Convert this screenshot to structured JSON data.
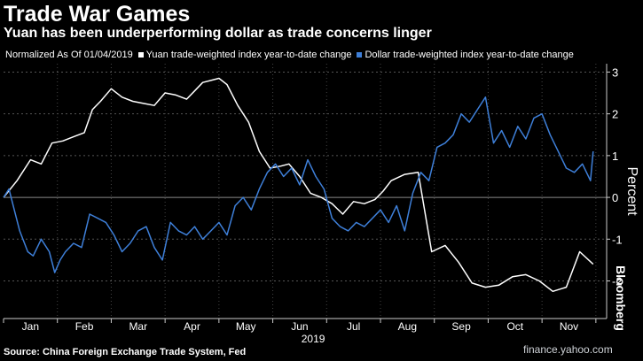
{
  "header": {
    "title": "Trade War Games",
    "subtitle": "Yuan has been underperforming dollar as trade concerns linger"
  },
  "legend": {
    "note": "Normalized As Of 01/04/2019",
    "items": [
      {
        "label": "Yuan trade-weighted index year-to-date change",
        "color": "#ffffff"
      },
      {
        "label": "Dollar trade-weighted index year-to-date change",
        "color": "#3e7fd8"
      }
    ]
  },
  "footer": {
    "source": "Source: China Foreign Exchange Trade System, Fed",
    "watermark": "finance.yahoo.com",
    "brand": "Bloomberg"
  },
  "chart_data": {
    "type": "line",
    "title": "Trade War Games",
    "subtitle": "Yuan has been underperforming dollar as trade concerns linger",
    "xlabel": "2019",
    "ylabel": "Percent",
    "xlim": [
      0,
      11.2
    ],
    "ylim": [
      -2.9,
      3.2
    ],
    "y_ticks": [
      3,
      2,
      1,
      0,
      -1,
      -2
    ],
    "x_ticks": [
      {
        "label": "Jan",
        "pos": 0.5
      },
      {
        "label": "Feb",
        "pos": 1.5
      },
      {
        "label": "Mar",
        "pos": 2.5
      },
      {
        "label": "Apr",
        "pos": 3.5
      },
      {
        "label": "May",
        "pos": 4.5
      },
      {
        "label": "Jun",
        "pos": 5.5
      },
      {
        "label": "Jul",
        "pos": 6.5
      },
      {
        "label": "Aug",
        "pos": 7.5
      },
      {
        "label": "Sep",
        "pos": 8.5
      },
      {
        "label": "Oct",
        "pos": 9.5
      },
      {
        "label": "Nov",
        "pos": 10.5
      }
    ],
    "grid": true,
    "series": [
      {
        "name": "Yuan trade-weighted index year-to-date change",
        "color": "#ffffff",
        "x": [
          0.0,
          0.25,
          0.5,
          0.7,
          0.9,
          1.1,
          1.3,
          1.5,
          1.65,
          1.8,
          2.0,
          2.2,
          2.4,
          2.6,
          2.8,
          3.0,
          3.2,
          3.4,
          3.55,
          3.7,
          3.85,
          4.0,
          4.15,
          4.35,
          4.55,
          4.75,
          4.95,
          5.15,
          5.3,
          5.5,
          5.7,
          5.9,
          6.1,
          6.3,
          6.5,
          6.7,
          6.9,
          7.05,
          7.2,
          7.45,
          7.7,
          7.95,
          8.2,
          8.45,
          8.7,
          8.95,
          9.2,
          9.45,
          9.7,
          9.95,
          10.2,
          10.45,
          10.7,
          10.95
        ],
        "values": [
          0.0,
          0.4,
          0.9,
          0.8,
          1.3,
          1.35,
          1.45,
          1.55,
          2.1,
          2.3,
          2.6,
          2.4,
          2.3,
          2.25,
          2.2,
          2.5,
          2.45,
          2.35,
          2.55,
          2.75,
          2.8,
          2.85,
          2.7,
          2.2,
          1.8,
          1.1,
          0.7,
          0.75,
          0.8,
          0.5,
          0.1,
          0.0,
          -0.15,
          -0.4,
          -0.1,
          -0.15,
          -0.05,
          0.15,
          0.4,
          0.55,
          0.6,
          -1.3,
          -1.15,
          -1.55,
          -2.05,
          -2.15,
          -2.1,
          -1.9,
          -1.85,
          -2.0,
          -2.25,
          -2.15,
          -1.3,
          -1.6
        ]
      },
      {
        "name": "Dollar trade-weighted index year-to-date change",
        "color": "#3e7fd8",
        "x": [
          0.0,
          0.1,
          0.2,
          0.3,
          0.45,
          0.55,
          0.7,
          0.85,
          0.95,
          1.05,
          1.15,
          1.3,
          1.45,
          1.6,
          1.75,
          1.9,
          2.05,
          2.2,
          2.35,
          2.5,
          2.65,
          2.8,
          2.95,
          3.1,
          3.25,
          3.4,
          3.55,
          3.7,
          3.85,
          4.0,
          4.15,
          4.3,
          4.45,
          4.6,
          4.75,
          4.9,
          5.05,
          5.2,
          5.35,
          5.5,
          5.65,
          5.8,
          5.95,
          6.1,
          6.25,
          6.4,
          6.55,
          6.7,
          6.85,
          7.0,
          7.15,
          7.3,
          7.45,
          7.6,
          7.75,
          7.9,
          8.05,
          8.2,
          8.35,
          8.5,
          8.65,
          8.8,
          8.95,
          9.1,
          9.25,
          9.4,
          9.55,
          9.7,
          9.85,
          10.0,
          10.15,
          10.3,
          10.45,
          10.6,
          10.75,
          10.9,
          10.95
        ],
        "values": [
          0.0,
          0.2,
          -0.3,
          -0.8,
          -1.3,
          -1.4,
          -1.0,
          -1.3,
          -1.8,
          -1.5,
          -1.3,
          -1.1,
          -1.2,
          -0.4,
          -0.5,
          -0.6,
          -0.9,
          -1.3,
          -1.1,
          -0.8,
          -0.7,
          -1.2,
          -1.5,
          -0.6,
          -0.8,
          -0.9,
          -0.7,
          -1.0,
          -0.8,
          -0.6,
          -0.9,
          -0.2,
          0.0,
          -0.3,
          0.2,
          0.6,
          0.8,
          0.5,
          0.7,
          0.3,
          0.9,
          0.5,
          0.2,
          -0.5,
          -0.7,
          -0.8,
          -0.6,
          -0.7,
          -0.5,
          -0.3,
          -0.6,
          -0.2,
          -0.8,
          0.1,
          0.6,
          0.4,
          1.2,
          1.3,
          1.5,
          2.0,
          1.8,
          2.1,
          2.4,
          1.3,
          1.6,
          1.2,
          1.7,
          1.4,
          1.9,
          2.0,
          1.5,
          1.1,
          0.7,
          0.6,
          0.8,
          0.4,
          1.1
        ]
      }
    ]
  }
}
